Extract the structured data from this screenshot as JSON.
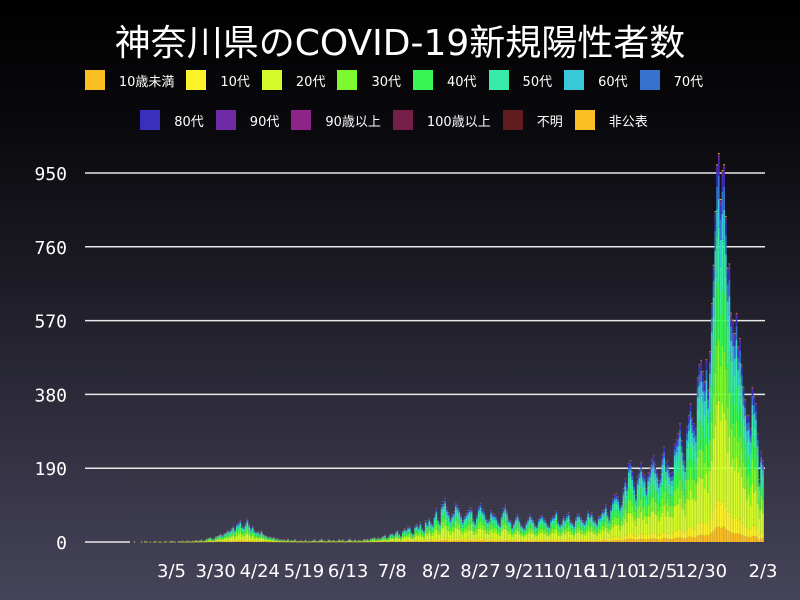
{
  "title": "神奈川県のCOVID-19新規陽性者数",
  "chart_data": {
    "type": "bar",
    "stacked": true,
    "title": "神奈川県のCOVID-19新規陽性者数",
    "xlabel": "",
    "ylabel": "",
    "ylim": [
      0,
      1000
    ],
    "yticks": [
      0,
      190,
      380,
      570,
      760,
      950
    ],
    "xtick_labels": [
      "3/5",
      "3/30",
      "4/24",
      "5/19",
      "6/13",
      "7/8",
      "8/2",
      "8/27",
      "9/21",
      "10/16",
      "11/10",
      "12/5",
      "12/30",
      "2/3"
    ],
    "xtick_dates": [
      "2020-03-05",
      "2020-03-30",
      "2020-04-24",
      "2020-05-19",
      "2020-06-13",
      "2020-07-08",
      "2020-08-02",
      "2020-08-27",
      "2020-09-21",
      "2020-10-16",
      "2020-11-10",
      "2020-12-05",
      "2020-12-30",
      "2021-02-03"
    ],
    "grid": "horizontal",
    "legend_placement": "top",
    "series": [
      {
        "name": "10歳未満",
        "color": "#fbbf24",
        "share": 0.04
      },
      {
        "name": "10代",
        "color": "#fcf22a",
        "share": 0.07
      },
      {
        "name": "20代",
        "color": "#d6fb2a",
        "share": 0.24
      },
      {
        "name": "30代",
        "color": "#7cf92f",
        "share": 0.16
      },
      {
        "name": "40代",
        "color": "#38f555",
        "share": 0.15
      },
      {
        "name": "50代",
        "color": "#38eba8",
        "share": 0.14
      },
      {
        "name": "60代",
        "color": "#38c8d8",
        "share": 0.08
      },
      {
        "name": "70代",
        "color": "#3672cf",
        "share": 0.06
      },
      {
        "name": "80代",
        "color": "#3a2fbd",
        "share": 0.04
      },
      {
        "name": "90代",
        "color": "#6f2aa6",
        "share": 0.015
      },
      {
        "name": "90歳以上",
        "color": "#8e248a",
        "share": 0.0
      },
      {
        "name": "100歳以上",
        "color": "#761e4a",
        "share": 0.0
      },
      {
        "name": "不明",
        "color": "#611c1f",
        "share": 0.002
      },
      {
        "name": "非公表",
        "color": "#fbbf24",
        "share": 0.003
      }
    ],
    "daily_totals_by_month": [
      {
        "month": "2020-01",
        "first_day": 16,
        "values": [
          0,
          0,
          0,
          0,
          0,
          0,
          0,
          0,
          0,
          0,
          0,
          0,
          0,
          0,
          0,
          0
        ]
      },
      {
        "month": "2020-02",
        "first_day": 1,
        "values": [
          0,
          0,
          0,
          0,
          0,
          0,
          0,
          0,
          0,
          0,
          0,
          0,
          1,
          0,
          0,
          0,
          1,
          0,
          2,
          1,
          0,
          1,
          0,
          1,
          2,
          0,
          1,
          1,
          0
        ]
      },
      {
        "month": "2020-03",
        "first_day": 1,
        "values": [
          1,
          2,
          0,
          1,
          3,
          2,
          1,
          0,
          2,
          1,
          3,
          2,
          1,
          4,
          2,
          1,
          3,
          2,
          5,
          3,
          4,
          6,
          2,
          5,
          8,
          10,
          12,
          9,
          7,
          14,
          15
        ]
      },
      {
        "month": "2020-04",
        "first_day": 1,
        "values": [
          18,
          20,
          16,
          22,
          25,
          30,
          28,
          35,
          40,
          33,
          45,
          50,
          55,
          42,
          38,
          48,
          60,
          45,
          35,
          40,
          30,
          25,
          28,
          22,
          30,
          20,
          18,
          15,
          12,
          14
        ]
      },
      {
        "month": "2020-05",
        "first_day": 1,
        "values": [
          10,
          12,
          8,
          9,
          6,
          7,
          5,
          6,
          4,
          8,
          3,
          5,
          4,
          6,
          3,
          2,
          4,
          3,
          2,
          5,
          1,
          3,
          2,
          4,
          6,
          3,
          2,
          5,
          8,
          4,
          3
        ]
      },
      {
        "month": "2020-06",
        "first_day": 1,
        "values": [
          2,
          6,
          4,
          3,
          5,
          2,
          3,
          7,
          4,
          6,
          3,
          2,
          5,
          8,
          4,
          3,
          6,
          2,
          5,
          4,
          3,
          7,
          6,
          8,
          5,
          9,
          10,
          12,
          8,
          11
        ]
      },
      {
        "month": "2020-07",
        "first_day": 1,
        "values": [
          9,
          12,
          15,
          18,
          10,
          14,
          20,
          22,
          18,
          25,
          30,
          20,
          15,
          28,
          35,
          30,
          40,
          38,
          25,
          20,
          42,
          45,
          38,
          50,
          35,
          30,
          55,
          48,
          60,
          52,
          45
        ]
      },
      {
        "month": "2020-08",
        "first_day": 1,
        "values": [
          70,
          85,
          60,
          50,
          95,
          105,
          110,
          90,
          75,
          60,
          70,
          80,
          100,
          95,
          85,
          70,
          55,
          65,
          75,
          80,
          90,
          85,
          60,
          50,
          70,
          90,
          100,
          85,
          80,
          65,
          55
        ]
      },
      {
        "month": "2020-09",
        "first_day": 1,
        "values": [
          60,
          80,
          75,
          70,
          65,
          50,
          45,
          70,
          85,
          95,
          80,
          60,
          55,
          40,
          50,
          65,
          70,
          60,
          45,
          40,
          35,
          50,
          60,
          70,
          65,
          55,
          45,
          40,
          60,
          65
        ]
      },
      {
        "month": "2020-10",
        "first_day": 1,
        "values": [
          70,
          60,
          55,
          45,
          40,
          60,
          65,
          70,
          80,
          55,
          45,
          50,
          65,
          60,
          70,
          75,
          55,
          50,
          45,
          60,
          75,
          70,
          65,
          55,
          50,
          60,
          80,
          70,
          75,
          60,
          55
        ]
      },
      {
        "month": "2020-11",
        "first_day": 1,
        "values": [
          50,
          65,
          70,
          80,
          85,
          95,
          75,
          60,
          90,
          110,
          120,
          125,
          115,
          95,
          100,
          140,
          160,
          150,
          200,
          210,
          180,
          150,
          120,
          165,
          190,
          200,
          185,
          170,
          140,
          175
        ]
      },
      {
        "month": "2020-12",
        "first_day": 1,
        "values": [
          190,
          210,
          220,
          200,
          185,
          160,
          170,
          230,
          240,
          210,
          205,
          190,
          175,
          180,
          250,
          260,
          280,
          300,
          265,
          220,
          210,
          290,
          330,
          350,
          320,
          300,
          290,
          420,
          450,
          470,
          430
        ]
      },
      {
        "month": "2021-01",
        "first_day": 1,
        "values": [
          420,
          460,
          400,
          480,
          620,
          700,
          850,
          960,
          990,
          880,
          940,
          980,
          820,
          720,
          700,
          600,
          560,
          540,
          580,
          500,
          520,
          450,
          400,
          360,
          330,
          320,
          300,
          390,
          380,
          350,
          280
        ]
      },
      {
        "month": "2021-02",
        "first_day": 1,
        "values": [
          160,
          230,
          210
        ]
      }
    ]
  }
}
